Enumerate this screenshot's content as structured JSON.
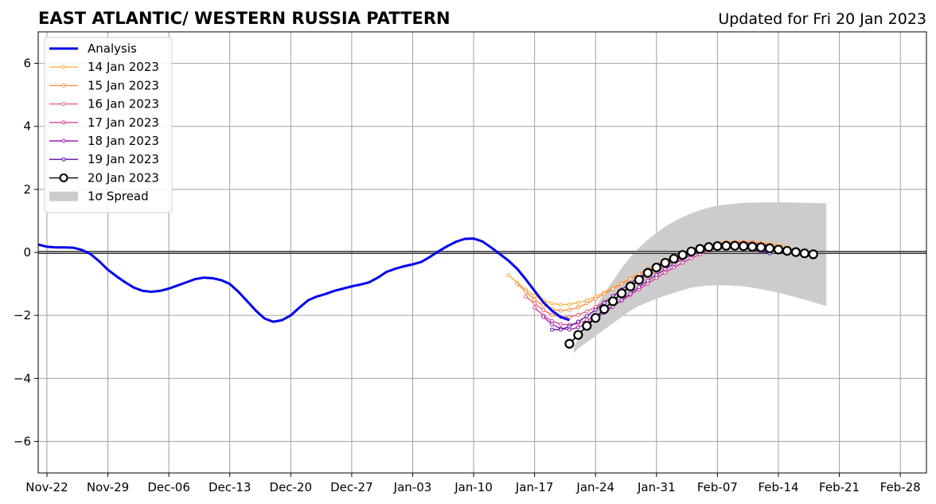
{
  "chart_data": {
    "type": "line",
    "title": "EAST ATLANTIC/ WESTERN RUSSIA PATTERN",
    "subtitle": "Updated for Fri 20 Jan 2023",
    "xlabel": "",
    "ylabel": "",
    "x_unit": "days since Nov-22",
    "xlim": [
      -1,
      101
    ],
    "ylim": [
      -7,
      7
    ],
    "x_ticks": [
      {
        "x": 0,
        "label": "Nov-22"
      },
      {
        "x": 7,
        "label": "Nov-29"
      },
      {
        "x": 14,
        "label": "Dec-06"
      },
      {
        "x": 21,
        "label": "Dec-13"
      },
      {
        "x": 28,
        "label": "Dec-20"
      },
      {
        "x": 35,
        "label": "Dec-27"
      },
      {
        "x": 42,
        "label": "Jan-03"
      },
      {
        "x": 49,
        "label": "Jan-10"
      },
      {
        "x": 56,
        "label": "Jan-17"
      },
      {
        "x": 63,
        "label": "Jan-24"
      },
      {
        "x": 70,
        "label": "Jan-31"
      },
      {
        "x": 77,
        "label": "Feb-07"
      },
      {
        "x": 84,
        "label": "Feb-14"
      },
      {
        "x": 91,
        "label": "Feb-21"
      },
      {
        "x": 98,
        "label": "Feb-28"
      }
    ],
    "y_ticks": [
      {
        "y": 6,
        "label": "6"
      },
      {
        "y": 4,
        "label": "4"
      },
      {
        "y": 2,
        "label": "2"
      },
      {
        "y": 0,
        "label": "0"
      },
      {
        "y": -2,
        "label": "−2"
      },
      {
        "y": -4,
        "label": "−4"
      },
      {
        "y": -6,
        "label": "−6"
      }
    ],
    "grid": true,
    "legend_position": "top-left",
    "analysis": {
      "name": "Analysis",
      "color": "#0000ee",
      "x": [
        -1,
        0,
        1,
        2,
        3,
        4,
        5,
        6,
        7,
        8,
        9,
        10,
        11,
        12,
        13,
        14,
        15,
        16,
        17,
        18,
        19,
        20,
        21,
        22,
        23,
        24,
        25,
        26,
        27,
        28,
        29,
        30,
        31,
        32,
        33,
        34,
        35,
        36,
        37,
        38,
        39,
        40,
        41,
        42,
        43,
        44,
        45,
        46,
        47,
        48,
        49,
        50,
        51,
        52,
        53,
        54,
        55,
        56,
        57,
        58,
        59,
        60
      ],
      "y": [
        0.25,
        0.18,
        0.16,
        0.16,
        0.15,
        0.08,
        -0.05,
        -0.28,
        -0.55,
        -0.76,
        -0.95,
        -1.12,
        -1.22,
        -1.25,
        -1.22,
        -1.15,
        -1.05,
        -0.95,
        -0.85,
        -0.8,
        -0.82,
        -0.88,
        -1.0,
        -1.25,
        -1.55,
        -1.85,
        -2.1,
        -2.2,
        -2.15,
        -2.0,
        -1.75,
        -1.52,
        -1.4,
        -1.32,
        -1.22,
        -1.15,
        -1.08,
        -1.02,
        -0.95,
        -0.8,
        -0.62,
        -0.52,
        -0.44,
        -0.38,
        -0.3,
        -0.14,
        0.04,
        0.2,
        0.34,
        0.43,
        0.44,
        0.35,
        0.16,
        -0.05,
        -0.26,
        -0.52,
        -0.86,
        -1.22,
        -1.58,
        -1.85,
        -2.05,
        -2.15
      ]
    },
    "spread": {
      "name": "1σ Spread",
      "color": "#cccccc",
      "x": [
        60.5,
        61,
        62,
        63,
        64,
        65,
        66,
        67,
        68,
        69,
        70,
        71,
        72,
        73,
        74,
        75,
        76,
        77,
        78,
        79,
        80,
        81,
        82,
        83,
        84,
        85,
        86,
        87,
        88,
        89,
        89.5
      ],
      "upper": [
        -3.0,
        -2.75,
        -2.25,
        -1.75,
        -1.3,
        -0.9,
        -0.5,
        -0.15,
        0.15,
        0.4,
        0.62,
        0.82,
        0.98,
        1.12,
        1.24,
        1.34,
        1.42,
        1.48,
        1.52,
        1.55,
        1.57,
        1.58,
        1.585,
        1.59,
        1.59,
        1.585,
        1.58,
        1.575,
        1.57,
        1.56,
        1.56
      ],
      "lower": [
        -3.2,
        -3.05,
        -2.85,
        -2.65,
        -2.45,
        -2.25,
        -2.05,
        -1.85,
        -1.7,
        -1.58,
        -1.47,
        -1.37,
        -1.28,
        -1.2,
        -1.12,
        -1.08,
        -1.05,
        -1.04,
        -1.04,
        -1.06,
        -1.08,
        -1.12,
        -1.17,
        -1.22,
        -1.28,
        -1.35,
        -1.42,
        -1.5,
        -1.58,
        -1.66,
        -1.7
      ]
    },
    "series": [
      {
        "name": "14 Jan 2023",
        "color": "#fcb041",
        "start_x": 53,
        "y": [
          -0.72,
          -0.96,
          -1.18,
          -1.38,
          -1.52,
          -1.62,
          -1.66,
          -1.65,
          -1.6,
          -1.52,
          -1.4,
          -1.27,
          -1.12,
          -0.97,
          -0.82,
          -0.67,
          -0.52,
          -0.38,
          -0.25,
          -0.12,
          0.0,
          0.1,
          0.18,
          0.25,
          0.3,
          0.33,
          0.34,
          0.34,
          0.33,
          0.31,
          0.28,
          0.24,
          0.2
        ]
      },
      {
        "name": "15 Jan 2023",
        "color": "#f98e4a",
        "start_x": 54,
        "y": [
          -1.0,
          -1.25,
          -1.5,
          -1.68,
          -1.8,
          -1.85,
          -1.82,
          -1.75,
          -1.62,
          -1.47,
          -1.32,
          -1.16,
          -1.0,
          -0.84,
          -0.68,
          -0.53,
          -0.38,
          -0.24,
          -0.11,
          0.0,
          0.1,
          0.18,
          0.25,
          0.3,
          0.33,
          0.34,
          0.33,
          0.3,
          0.26,
          0.21
        ]
      },
      {
        "name": "16 Jan 2023",
        "color": "#e86270",
        "start_x": 55,
        "y": [
          -1.4,
          -1.62,
          -1.83,
          -1.98,
          -2.05,
          -2.05,
          -1.98,
          -1.87,
          -1.73,
          -1.57,
          -1.41,
          -1.25,
          -1.08,
          -0.92,
          -0.75,
          -0.59,
          -0.44,
          -0.3,
          -0.16,
          -0.04,
          0.07,
          0.16,
          0.23,
          0.28,
          0.31,
          0.32,
          0.31,
          0.28,
          0.24
        ]
      },
      {
        "name": "17 Jan 2023",
        "color": "#d2439a",
        "start_x": 56,
        "y": [
          -1.75,
          -2.0,
          -2.18,
          -2.28,
          -2.3,
          -2.25,
          -2.15,
          -2.02,
          -1.87,
          -1.7,
          -1.53,
          -1.35,
          -1.17,
          -0.99,
          -0.81,
          -0.64,
          -0.48,
          -0.33,
          -0.19,
          -0.06,
          0.06,
          0.15,
          0.22,
          0.26,
          0.28,
          0.28,
          0.26,
          0.23
        ]
      },
      {
        "name": "18 Jan 2023",
        "color": "#9a1fb0",
        "start_x": 57,
        "y": [
          -2.05,
          -2.28,
          -2.42,
          -2.45,
          -2.38,
          -2.25,
          -2.1,
          -1.92,
          -1.72,
          -1.52,
          -1.31,
          -1.1,
          -0.9,
          -0.71,
          -0.53,
          -0.36,
          -0.21,
          -0.08,
          0.03,
          0.12,
          0.18,
          0.22,
          0.23,
          0.22,
          0.19,
          0.15,
          0.1
        ]
      },
      {
        "name": "19 Jan 2023",
        "color": "#5c0da3",
        "start_x": 58,
        "y": [
          -2.45,
          -2.45,
          -2.35,
          -2.2,
          -2.02,
          -1.82,
          -1.6,
          -1.39,
          -1.18,
          -0.98,
          -0.79,
          -0.61,
          -0.44,
          -0.29,
          -0.16,
          -0.04,
          0.06,
          0.13,
          0.18,
          0.2,
          0.2,
          0.18,
          0.14,
          0.09,
          0.03,
          -0.03
        ]
      },
      {
        "name": "20 Jan 2023",
        "color": "#000000",
        "start_x": 60,
        "y": [
          -2.9,
          -2.62,
          -2.33,
          -2.08,
          -1.8,
          -1.55,
          -1.3,
          -1.08,
          -0.87,
          -0.65,
          -0.48,
          -0.33,
          -0.2,
          -0.08,
          0.03,
          0.11,
          0.17,
          0.2,
          0.21,
          0.21,
          0.2,
          0.18,
          0.16,
          0.13,
          0.09,
          0.05,
          0.01,
          -0.03,
          -0.06
        ]
      }
    ],
    "legend": [
      "Analysis",
      "14 Jan 2023",
      "15 Jan 2023",
      "16 Jan 2023",
      "17 Jan 2023",
      "18 Jan 2023",
      "19 Jan 2023",
      "20 Jan 2023",
      "1σ Spread"
    ]
  }
}
